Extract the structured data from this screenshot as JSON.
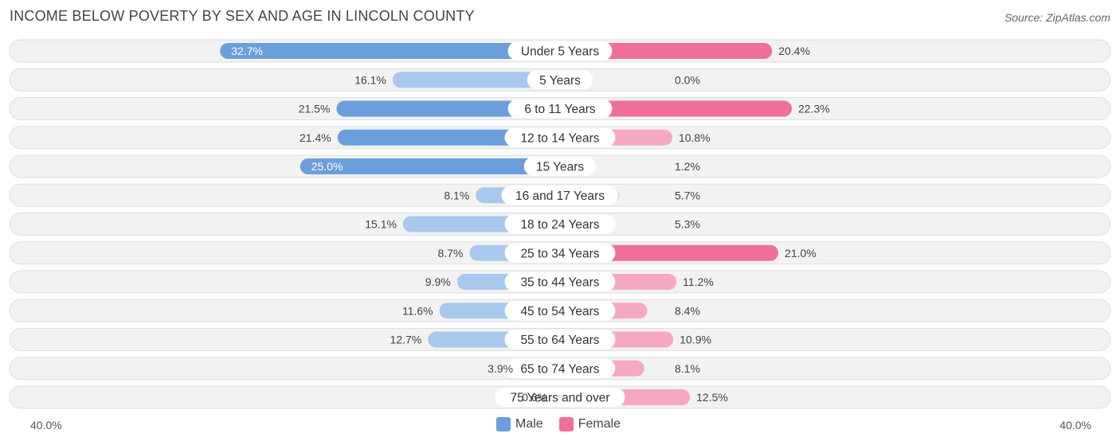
{
  "colors": {
    "male_strong": "#6a9fdc",
    "male_light": "#a8c9ee",
    "female_strong": "#f06f98",
    "female_light": "#f6a8c2"
  },
  "chart_data": {
    "type": "bar",
    "orientation": "horizontal-diverging",
    "title": "INCOME BELOW POVERTY BY SEX AND AGE IN LINCOLN COUNTY",
    "source": "Source: ZipAtlas.com",
    "axis_min_label": "40.0%",
    "axis_max_label": "40.0%",
    "xlim": [
      -40,
      40
    ],
    "categories": [
      "Under 5 Years",
      "5 Years",
      "6 to 11 Years",
      "12 to 14 Years",
      "15 Years",
      "16 and 17 Years",
      "18 to 24 Years",
      "25 to 34 Years",
      "35 to 44 Years",
      "45 to 54 Years",
      "55 to 64 Years",
      "65 to 74 Years",
      "75 Years and over"
    ],
    "series": [
      {
        "name": "Male",
        "values": [
          32.7,
          16.1,
          21.5,
          21.4,
          25.0,
          8.1,
          15.1,
          8.7,
          9.9,
          11.6,
          12.7,
          3.9,
          0.6
        ],
        "labels": [
          "32.7%",
          "16.1%",
          "21.5%",
          "21.4%",
          "25.0%",
          "8.1%",
          "15.1%",
          "8.7%",
          "9.9%",
          "11.6%",
          "12.7%",
          "3.9%",
          "0.6%"
        ]
      },
      {
        "name": "Female",
        "values": [
          20.4,
          0.0,
          22.3,
          10.8,
          1.2,
          5.7,
          5.3,
          21.0,
          11.2,
          8.4,
          10.9,
          8.1,
          12.5
        ],
        "labels": [
          "20.4%",
          "0.0%",
          "22.3%",
          "10.8%",
          "1.2%",
          "5.7%",
          "5.3%",
          "21.0%",
          "11.2%",
          "8.4%",
          "10.9%",
          "8.1%",
          "12.5%"
        ]
      }
    ],
    "legend": [
      "Male",
      "Female"
    ]
  }
}
